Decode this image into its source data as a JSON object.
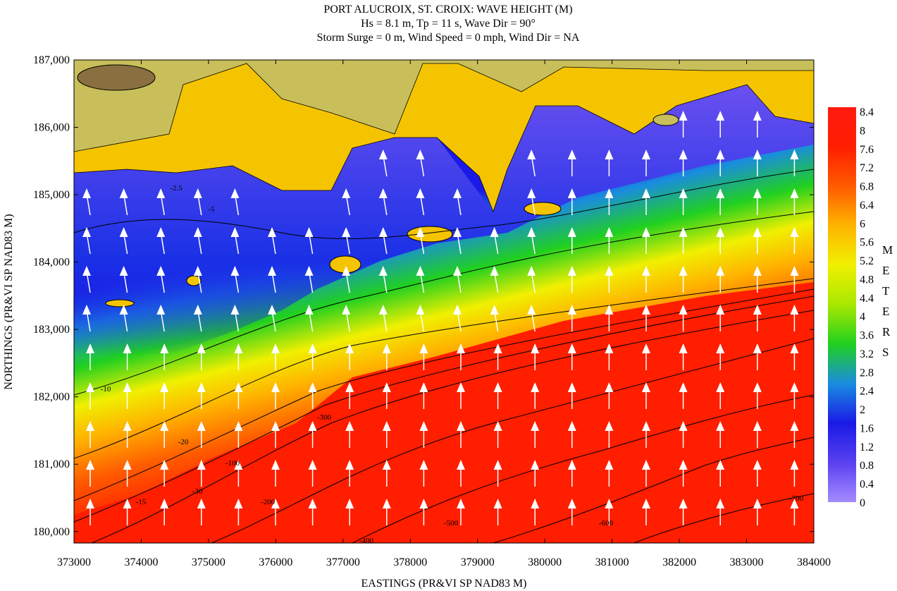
{
  "chart_data": {
    "type": "heatmap",
    "title": "PORT ALUCROIX, ST. CROIX: WAVE HEIGHT (M)",
    "subtitle": [
      "Hs = 8.1 m, Tp = 11 s, Wave Dir = 90°",
      "Storm Surge = 0 m, Wind Speed = 0 mph, Wind Dir = NA"
    ],
    "x_label": "EASTINGS (PR&VI SP NAD83 M)",
    "y_label": "NORTHINGS (PR&VI SP NAD83 M)",
    "xlim": [
      373000,
      384000
    ],
    "xticks": [
      373000,
      374000,
      375000,
      376000,
      377000,
      378000,
      379000,
      380000,
      381000,
      382000,
      383000,
      384000
    ],
    "ylim": [
      179830,
      187000
    ],
    "yticks": [
      {
        "value": 180000,
        "label": "180,000"
      },
      {
        "value": 181000,
        "label": "181,000"
      },
      {
        "value": 182000,
        "label": "182,000"
      },
      {
        "value": 183000,
        "label": "183,000"
      },
      {
        "value": 184000,
        "label": "184,000"
      },
      {
        "value": 185000,
        "label": "185,000"
      },
      {
        "value": 186000,
        "label": "186,000"
      },
      {
        "value": 187000,
        "label": "187,000"
      }
    ],
    "colorbar": {
      "label": "METERS",
      "lim": [
        0,
        8.4
      ],
      "ticks": [
        0,
        0.4,
        0.8,
        1.2,
        1.6,
        2,
        2.4,
        2.8,
        3.2,
        3.6,
        4,
        4.4,
        4.8,
        5.2,
        5.6,
        6,
        6.4,
        6.8,
        7.2,
        7.6,
        8,
        8.4
      ],
      "colors": [
        "#a58cff",
        "#5a40f0",
        "#1a1ae6",
        "#1a8ce0",
        "#20d020",
        "#a8e800",
        "#f0f000",
        "#ffb400",
        "#ff5a00",
        "#ff1e00",
        "#ff1a10"
      ]
    },
    "contour_labels": [
      "-10",
      "-15",
      "-20",
      "-30",
      "-100",
      "-200",
      "-300",
      "-400",
      "-500",
      "-600",
      "-700",
      "-5",
      "-2.5"
    ]
  }
}
